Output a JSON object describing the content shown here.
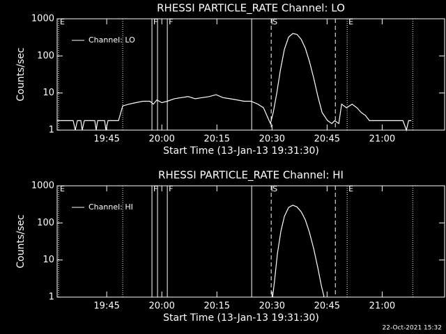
{
  "chart_data": [
    {
      "type": "line",
      "title": "RHESSI PARTICLE_RATE Channel: LO",
      "xlabel": "Start Time (13-Jan-13 19:31:30)",
      "ylabel": "Counts/sec",
      "xlim": [
        0,
        6330
      ],
      "ylim": [
        1,
        1000
      ],
      "log_y": true,
      "color": "#ffffff",
      "xticks": [
        {
          "value": 810,
          "label": "19:45"
        },
        {
          "value": 1710,
          "label": "20:00"
        },
        {
          "value": 2610,
          "label": "20:15"
        },
        {
          "value": 3510,
          "label": "20:30"
        },
        {
          "value": 4410,
          "label": "20:45"
        },
        {
          "value": 5310,
          "label": "21:00"
        }
      ],
      "yticks": [
        1,
        10,
        100,
        1000
      ],
      "markers": [
        {
          "x": 23,
          "style": "dotted",
          "label": "E"
        },
        {
          "x": 1071,
          "style": "dotted"
        },
        {
          "x": 1549,
          "style": "solid",
          "label": "F"
        },
        {
          "x": 1640,
          "style": "solid"
        },
        {
          "x": 1800,
          "style": "solid",
          "label": "F"
        },
        {
          "x": 3178,
          "style": "solid"
        },
        {
          "x": 3497,
          "style": "dashed",
          "label": "S"
        },
        {
          "x": 4545,
          "style": "dashed"
        },
        {
          "x": 4738,
          "style": "dotted",
          "label": "E"
        },
        {
          "x": 5809,
          "style": "dotted"
        }
      ],
      "series": [
        {
          "name": "Channel: LO",
          "x": [
            0,
            262,
            296,
            330,
            387,
            410,
            444,
            615,
            638,
            661,
            775,
            797,
            831,
            1002,
            1071,
            1173,
            1287,
            1401,
            1515,
            1572,
            1629,
            1709,
            1800,
            1913,
            2027,
            2141,
            2255,
            2369,
            2483,
            2597,
            2711,
            2825,
            2939,
            3053,
            3166,
            3280,
            3371,
            3451,
            3485,
            3531,
            3588,
            3645,
            3713,
            3781,
            3850,
            3918,
            3987,
            4055,
            4123,
            4192,
            4260,
            4328,
            4419,
            4488,
            4533,
            4602,
            4647,
            4727,
            4818,
            4898,
            4966,
            5034,
            5103,
            5444,
            5649,
            5706,
            5741,
            5786
          ],
          "values": [
            1.8,
            1.8,
            1.0,
            1.8,
            1.8,
            1.0,
            1.8,
            1.8,
            1.0,
            1.8,
            1.8,
            1.0,
            1.8,
            1.8,
            4.5,
            5,
            5.5,
            6,
            6,
            5,
            6.5,
            5.5,
            6,
            7,
            7.5,
            8,
            7,
            7.5,
            8,
            9,
            7.5,
            7,
            6.5,
            6,
            6,
            5,
            4,
            2,
            1.5,
            3,
            10,
            40,
            150,
            320,
            400,
            380,
            280,
            160,
            70,
            25,
            8,
            3,
            1.8,
            1.5,
            1.8,
            1.5,
            5,
            4,
            5,
            4,
            3,
            2.5,
            1.8,
            1.8,
            1.8,
            1.0,
            1.8,
            1.8
          ]
        }
      ]
    },
    {
      "type": "line",
      "title": "RHESSI PARTICLE_RATE Channel: HI",
      "xlabel": "Start Time (13-Jan-13 19:31:30)",
      "ylabel": "Counts/sec",
      "xlim": [
        0,
        6330
      ],
      "ylim": [
        1,
        1000
      ],
      "log_y": true,
      "color": "#ffffff",
      "xticks": [
        {
          "value": 810,
          "label": "19:45"
        },
        {
          "value": 1710,
          "label": "20:00"
        },
        {
          "value": 2610,
          "label": "20:15"
        },
        {
          "value": 3510,
          "label": "20:30"
        },
        {
          "value": 4410,
          "label": "20:45"
        },
        {
          "value": 5310,
          "label": "21:00"
        }
      ],
      "yticks": [
        1,
        10,
        100,
        1000
      ],
      "markers": [
        {
          "x": 23,
          "style": "dotted",
          "label": "E"
        },
        {
          "x": 1071,
          "style": "dotted"
        },
        {
          "x": 1549,
          "style": "solid",
          "label": "F"
        },
        {
          "x": 1640,
          "style": "solid"
        },
        {
          "x": 1800,
          "style": "solid",
          "label": "F"
        },
        {
          "x": 3178,
          "style": "solid"
        },
        {
          "x": 3497,
          "style": "dashed",
          "label": "S"
        },
        {
          "x": 4545,
          "style": "dashed"
        },
        {
          "x": 4738,
          "style": "dotted",
          "label": "E"
        },
        {
          "x": 5809,
          "style": "dotted"
        }
      ],
      "series": [
        {
          "name": "Channel: HI",
          "x": [
            3520,
            3554,
            3599,
            3656,
            3713,
            3781,
            3850,
            3918,
            3987,
            4055,
            4123,
            4192,
            4260,
            4317,
            4362
          ],
          "values": [
            1,
            3,
            15,
            60,
            150,
            260,
            300,
            270,
            200,
            120,
            55,
            20,
            6,
            2,
            1
          ]
        }
      ]
    }
  ],
  "footer": "22-Oct-2021 15:32"
}
